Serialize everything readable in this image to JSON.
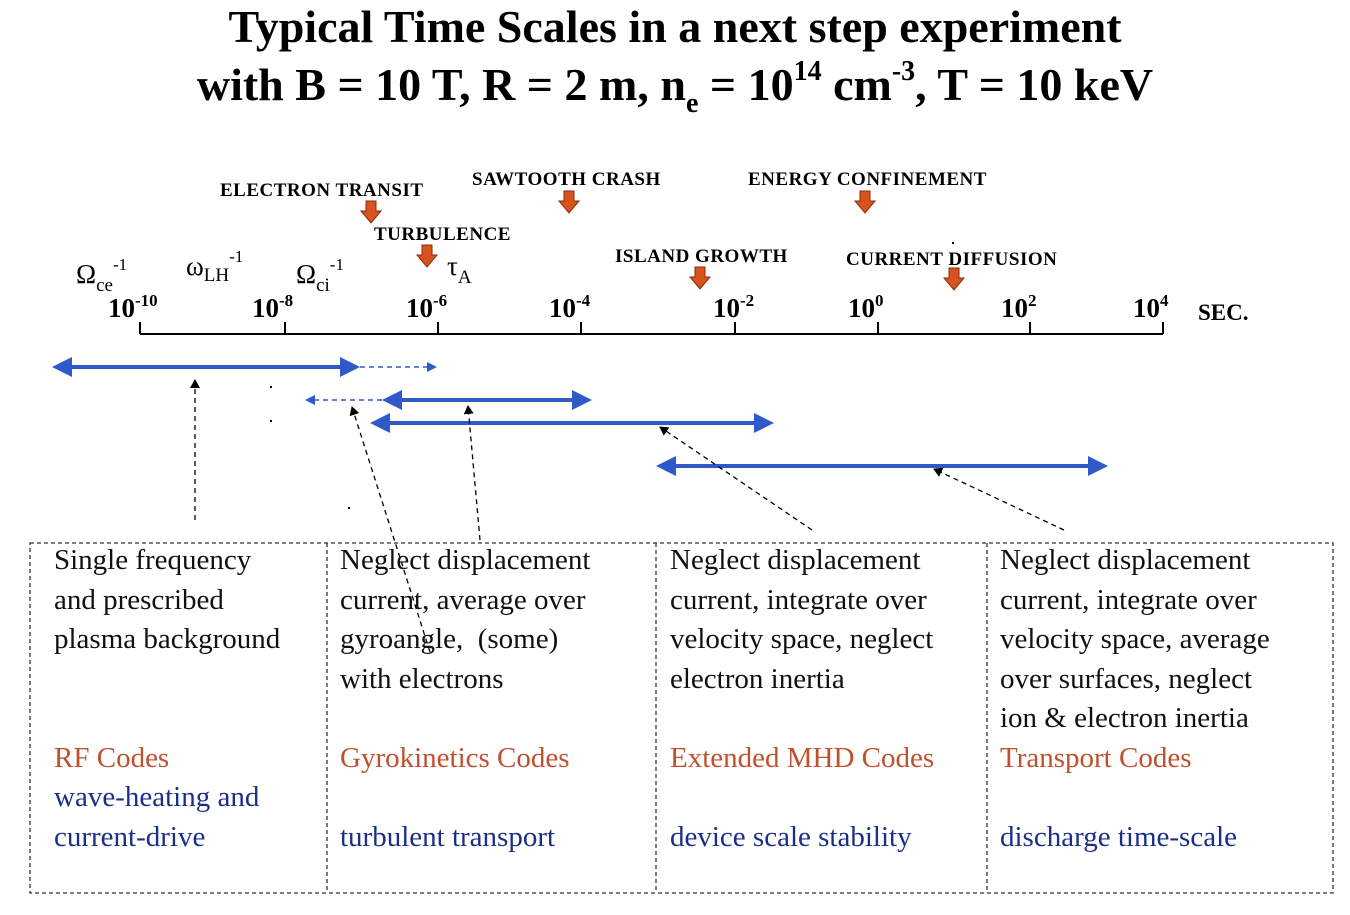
{
  "title": {
    "line1": "Typical Time Scales in a next step experiment",
    "line2_prefix": "with B = 10 T, R = 2 m, n",
    "line2_ne_sub": "e",
    "line2_mid": " = 10",
    "line2_exp1": "14",
    "line2_cm": " cm",
    "line2_exp2": "-3",
    "line2_suffix": ", T = 10 keV"
  },
  "axis": {
    "unit": "SEC.",
    "ticks": [
      {
        "base": "10",
        "exp": "-10"
      },
      {
        "base": "10",
        "exp": "-8"
      },
      {
        "base": "10",
        "exp": "-6"
      },
      {
        "base": "10",
        "exp": "-4"
      },
      {
        "base": "10",
        "exp": "-2"
      },
      {
        "base": "10",
        "exp": "0"
      },
      {
        "base": "10",
        "exp": "2"
      },
      {
        "base": "10",
        "exp": "4"
      }
    ]
  },
  "frequencies": {
    "omega_ce": {
      "symbol": "Ω",
      "sub": "ce",
      "sup": "-1"
    },
    "omega_lh": {
      "symbol": "ω",
      "sub": "LH",
      "sup": "-1"
    },
    "omega_ci": {
      "symbol": "Ω",
      "sub": "ci",
      "sup": "-1"
    },
    "tau_a": {
      "symbol": "τ",
      "sub": "A"
    }
  },
  "events": [
    {
      "label": "ELECTRON TRANSIT"
    },
    {
      "label": "TURBULENCE"
    },
    {
      "label": "SAWTOOTH CRASH"
    },
    {
      "label": "ISLAND GROWTH"
    },
    {
      "label": "ENERGY CONFINEMENT"
    },
    {
      "label": "CURRENT DIFFUSION"
    }
  ],
  "colors": {
    "range_arrow": "#2e59c8",
    "event_marker": "#d9531e",
    "event_marker_outline": "#8a2a0a",
    "code_name": "#c0502e",
    "purpose": "#1a2f8a"
  },
  "panels": [
    {
      "description": [
        "Single frequency",
        "and prescribed",
        "plasma background"
      ],
      "code": "RF Codes",
      "purpose": [
        "wave-heating and",
        "current-drive"
      ]
    },
    {
      "description": [
        "Neglect displacement",
        "current, average over",
        "gyroangle,  (some)",
        "with electrons"
      ],
      "code": "Gyrokinetics Codes",
      "purpose": [
        "",
        "turbulent transport"
      ]
    },
    {
      "description": [
        "Neglect displacement",
        "current, integrate over",
        "velocity space, neglect",
        "electron inertia"
      ],
      "code": "Extended MHD Codes",
      "purpose": [
        "",
        "device scale stability"
      ]
    },
    {
      "description": [
        "Neglect displacement",
        "current, integrate over",
        "velocity space, average",
        "over surfaces, neglect",
        "ion & electron inertia"
      ],
      "code": "Transport Codes",
      "purpose": [
        "discharge time-scale"
      ]
    }
  ]
}
